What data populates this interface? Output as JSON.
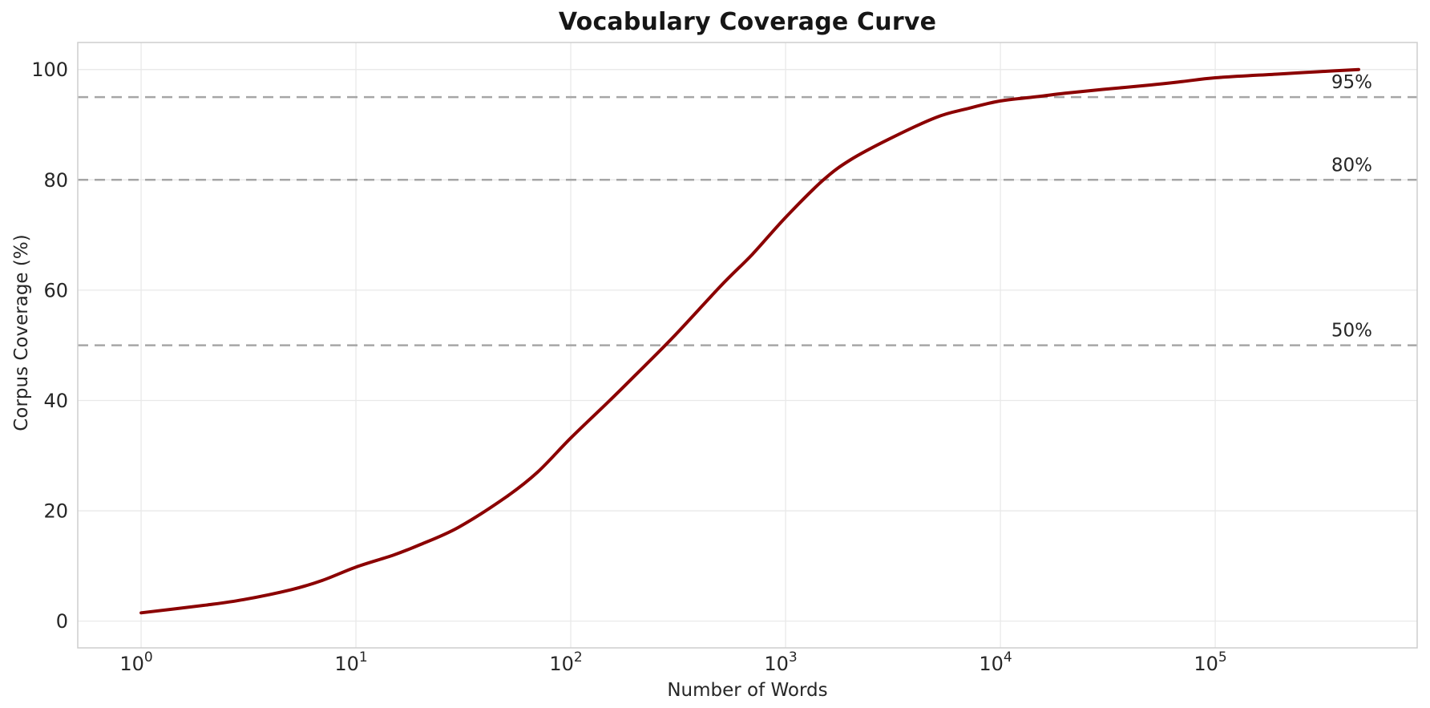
{
  "chart_data": {
    "type": "line",
    "title": "Vocabulary Coverage Curve",
    "xlabel": "Number of Words",
    "ylabel": "Corpus Coverage (%)",
    "x_scale": "log",
    "grid": true,
    "legend": "none",
    "xlim_log10": [
      -0.295,
      5.94
    ],
    "ylim": [
      -4.85,
      104.9
    ],
    "x_ticks": [
      {
        "value": 1,
        "mantissa": "10",
        "exponent": "0"
      },
      {
        "value": 10,
        "mantissa": "10",
        "exponent": "1"
      },
      {
        "value": 100,
        "mantissa": "10",
        "exponent": "2"
      },
      {
        "value": 1000,
        "mantissa": "10",
        "exponent": "3"
      },
      {
        "value": 10000,
        "mantissa": "10",
        "exponent": "4"
      },
      {
        "value": 100000,
        "mantissa": "10",
        "exponent": "5"
      }
    ],
    "y_ticks": [
      0,
      20,
      40,
      60,
      80,
      100
    ],
    "series": [
      {
        "name": "coverage-curve",
        "color": "#8B0000",
        "line_width": 4,
        "points": [
          [
            1,
            1.5
          ],
          [
            2,
            2.9
          ],
          [
            3,
            3.9
          ],
          [
            5,
            5.7
          ],
          [
            7,
            7.4
          ],
          [
            10,
            9.8
          ],
          [
            15,
            12.0
          ],
          [
            20,
            13.9
          ],
          [
            30,
            17.0
          ],
          [
            50,
            22.5
          ],
          [
            70,
            27.0
          ],
          [
            100,
            33.2
          ],
          [
            150,
            39.8
          ],
          [
            200,
            44.6
          ],
          [
            300,
            51.5
          ],
          [
            500,
            60.8
          ],
          [
            700,
            66.5
          ],
          [
            1000,
            73.2
          ],
          [
            1500,
            80.0
          ],
          [
            2000,
            83.6
          ],
          [
            3000,
            87.3
          ],
          [
            5000,
            91.3
          ],
          [
            7000,
            92.9
          ],
          [
            10000,
            94.3
          ],
          [
            15000,
            95.1
          ],
          [
            20000,
            95.7
          ],
          [
            30000,
            96.4
          ],
          [
            50000,
            97.2
          ],
          [
            70000,
            97.8
          ],
          [
            100000,
            98.5
          ],
          [
            200000,
            99.2
          ],
          [
            300000,
            99.6
          ],
          [
            465000,
            100.0
          ]
        ]
      }
    ],
    "reference_lines": [
      {
        "value": 50,
        "label": "50%"
      },
      {
        "value": 80,
        "label": "80%"
      },
      {
        "value": 95,
        "label": "95%"
      }
    ],
    "style": {
      "curve_color": "#8B0000",
      "reference_color": "#a6a6a6",
      "reference_dash": [
        13,
        8
      ],
      "grid_color": "#e9e9e9",
      "spine_color": "#cdcdcd",
      "tick_text_color": "#262626",
      "title_color": "#161616",
      "background": "#ffffff"
    }
  }
}
